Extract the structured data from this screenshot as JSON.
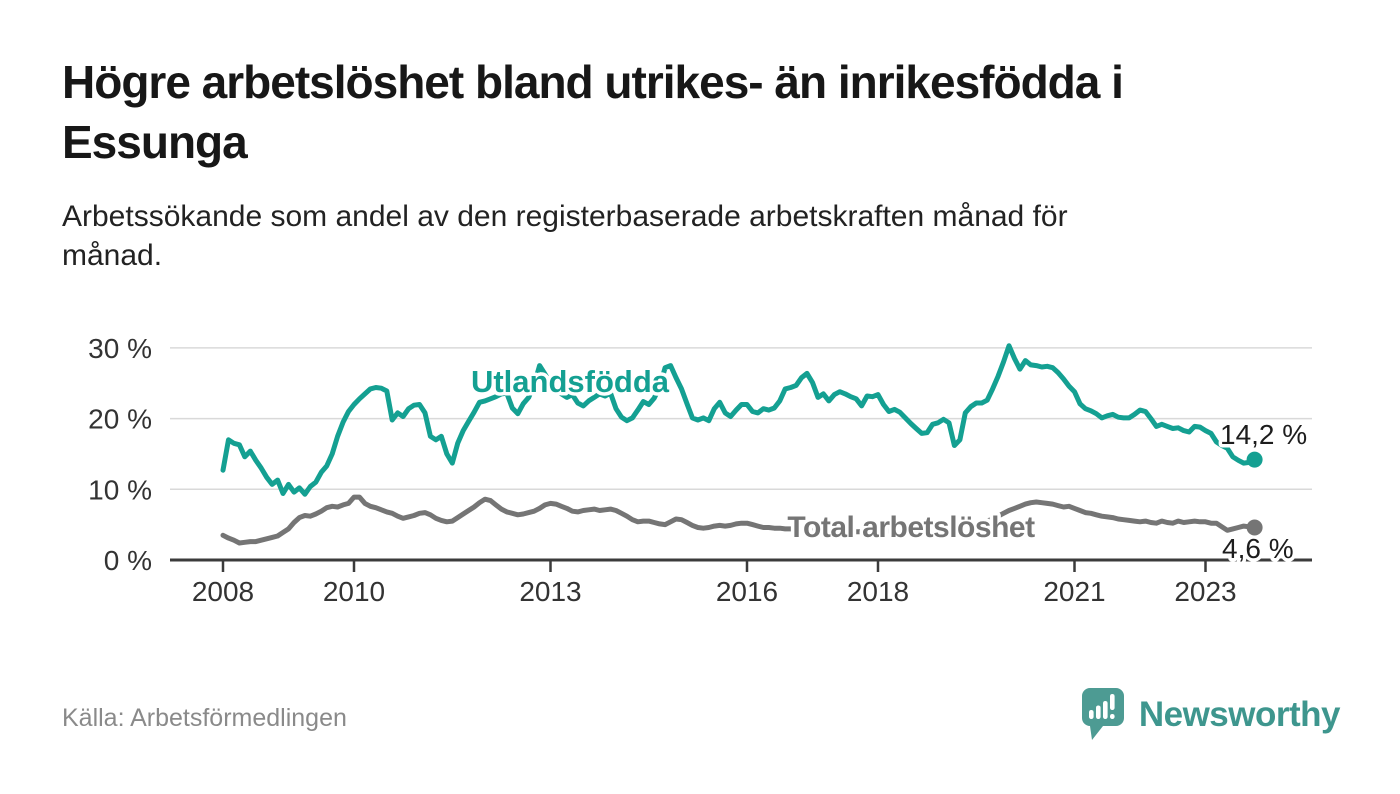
{
  "title_lines": [
    "Högre arbetslöshet bland utrikes- än inrikesfödda i",
    "Essunga"
  ],
  "subtitle_lines": [
    "Arbetssökande som andel av den registerbaserade arbetskraften månad för",
    "månad."
  ],
  "source": "Källa: Arbetsförmedlingen",
  "brand": {
    "name": "Newsworthy",
    "icon": "newsworthy-chart-bubble-icon",
    "color": "#3e968e"
  },
  "chart_data": {
    "type": "line",
    "title": "",
    "xlabel": "",
    "ylabel": "",
    "x_unit": "month",
    "x_start": "2008-01",
    "x_end": "2023-10",
    "x_tick_years": [
      2008,
      2010,
      2013,
      2016,
      2018,
      2021,
      2023
    ],
    "y_ticks": [
      {
        "value": 0,
        "label": "0 %"
      },
      {
        "value": 10,
        "label": "10 %"
      },
      {
        "value": 20,
        "label": "20 %"
      },
      {
        "value": 30,
        "label": "30 %"
      }
    ],
    "ylim": [
      0,
      31
    ],
    "grid": "horizontal",
    "legend": "inline-labels",
    "series": [
      {
        "name": "Utlandsfödda",
        "color": "#14a092",
        "end_value": 14.2,
        "end_label": "14,2 %",
        "values": [
          12.7,
          17.0,
          16.5,
          16.3,
          14.6,
          15.4,
          14.1,
          13.0,
          11.7,
          10.7,
          11.3,
          9.4,
          10.7,
          9.6,
          10.2,
          9.3,
          10.4,
          11.0,
          12.4,
          13.3,
          15.0,
          17.5,
          19.5,
          21.0,
          22.0,
          22.8,
          23.5,
          24.2,
          24.4,
          24.3,
          23.9,
          19.8,
          20.8,
          20.3,
          21.4,
          21.9,
          22.0,
          20.8,
          17.5,
          17.0,
          17.5,
          15.0,
          13.7,
          16.5,
          18.3,
          19.6,
          20.9,
          22.3,
          22.5,
          22.8,
          23.1,
          23.5,
          23.6,
          21.5,
          20.7,
          22.1,
          23.0,
          24.8,
          27.5,
          26.3,
          25.0,
          24.2,
          23.5,
          23.0,
          23.4,
          22.2,
          21.8,
          22.5,
          23.0,
          23.5,
          23.2,
          23.6,
          21.4,
          20.2,
          19.7,
          20.1,
          21.2,
          22.4,
          22.0,
          22.9,
          24.5,
          27.2,
          27.5,
          25.8,
          24.2,
          22.1,
          20.1,
          19.8,
          20.1,
          19.7,
          21.4,
          22.3,
          20.8,
          20.3,
          21.2,
          22.0,
          22.0,
          21.0,
          20.8,
          21.4,
          21.2,
          21.5,
          22.5,
          24.2,
          24.4,
          24.7,
          25.8,
          26.4,
          25.1,
          23.0,
          23.5,
          22.5,
          23.4,
          23.8,
          23.5,
          23.1,
          22.8,
          21.8,
          23.2,
          23.1,
          23.4,
          22.0,
          21.0,
          21.3,
          20.9,
          20.1,
          19.3,
          18.6,
          17.9,
          18.0,
          19.2,
          19.4,
          19.9,
          19.4,
          16.2,
          17.0,
          20.8,
          21.7,
          22.2,
          22.2,
          22.6,
          24.2,
          26.0,
          28.0,
          30.3,
          28.5,
          27.0,
          28.2,
          27.6,
          27.5,
          27.3,
          27.4,
          27.2,
          26.5,
          25.6,
          24.6,
          23.8,
          22.1,
          21.4,
          21.1,
          20.7,
          20.1,
          20.4,
          20.6,
          20.2,
          20.1,
          20.1,
          20.6,
          21.2,
          21.0,
          20.0,
          18.9,
          19.2,
          18.9,
          18.6,
          18.7,
          18.3,
          18.1,
          18.9,
          18.8,
          18.3,
          17.9,
          16.7,
          16.2,
          15.8,
          14.6,
          14.1,
          13.7,
          13.8,
          14.2
        ]
      },
      {
        "name": "Total arbetslöshet",
        "color": "#757575",
        "end_value": 4.6,
        "end_label": "4,6 %",
        "values": [
          3.5,
          3.1,
          2.8,
          2.4,
          2.5,
          2.6,
          2.6,
          2.8,
          3.0,
          3.2,
          3.4,
          3.9,
          4.4,
          5.3,
          6.0,
          6.3,
          6.2,
          6.5,
          6.9,
          7.4,
          7.6,
          7.5,
          7.8,
          8.0,
          8.9,
          8.9,
          8.0,
          7.6,
          7.4,
          7.1,
          6.8,
          6.6,
          6.2,
          5.9,
          6.1,
          6.3,
          6.6,
          6.7,
          6.4,
          5.9,
          5.6,
          5.4,
          5.5,
          6.0,
          6.5,
          7.0,
          7.5,
          8.1,
          8.6,
          8.4,
          7.8,
          7.2,
          6.8,
          6.6,
          6.4,
          6.5,
          6.7,
          6.9,
          7.3,
          7.8,
          8.0,
          7.9,
          7.6,
          7.3,
          6.9,
          6.8,
          7.0,
          7.1,
          7.2,
          7.0,
          7.1,
          7.2,
          7.0,
          6.6,
          6.2,
          5.7,
          5.4,
          5.5,
          5.5,
          5.3,
          5.1,
          5.0,
          5.4,
          5.8,
          5.7,
          5.3,
          4.9,
          4.6,
          4.5,
          4.6,
          4.8,
          4.9,
          4.8,
          4.9,
          5.1,
          5.2,
          5.2,
          5.0,
          4.8,
          4.6,
          4.6,
          4.5,
          4.5,
          4.4,
          4.4,
          4.3,
          4.3,
          4.2,
          4.2,
          4.1,
          4.1,
          4.0,
          4.0,
          3.9,
          3.9,
          3.9,
          4.0,
          4.0,
          4.1,
          4.1,
          4.2,
          4.2,
          4.1,
          4.1,
          4.0,
          4.0,
          4.1,
          4.1,
          4.2,
          4.3,
          4.4,
          4.5,
          4.6,
          4.6,
          4.7,
          4.8,
          4.9,
          5.0,
          5.1,
          5.3,
          5.5,
          5.8,
          6.2,
          6.6,
          7.0,
          7.3,
          7.6,
          7.9,
          8.1,
          8.2,
          8.1,
          8.0,
          7.9,
          7.7,
          7.5,
          7.6,
          7.3,
          7.0,
          6.7,
          6.6,
          6.4,
          6.2,
          6.1,
          6.0,
          5.8,
          5.7,
          5.6,
          5.5,
          5.4,
          5.5,
          5.3,
          5.2,
          5.5,
          5.3,
          5.2,
          5.5,
          5.3,
          5.4,
          5.5,
          5.4,
          5.4,
          5.2,
          5.2,
          4.7,
          4.2,
          4.4,
          4.6,
          4.8,
          4.7,
          4.6
        ]
      }
    ]
  }
}
